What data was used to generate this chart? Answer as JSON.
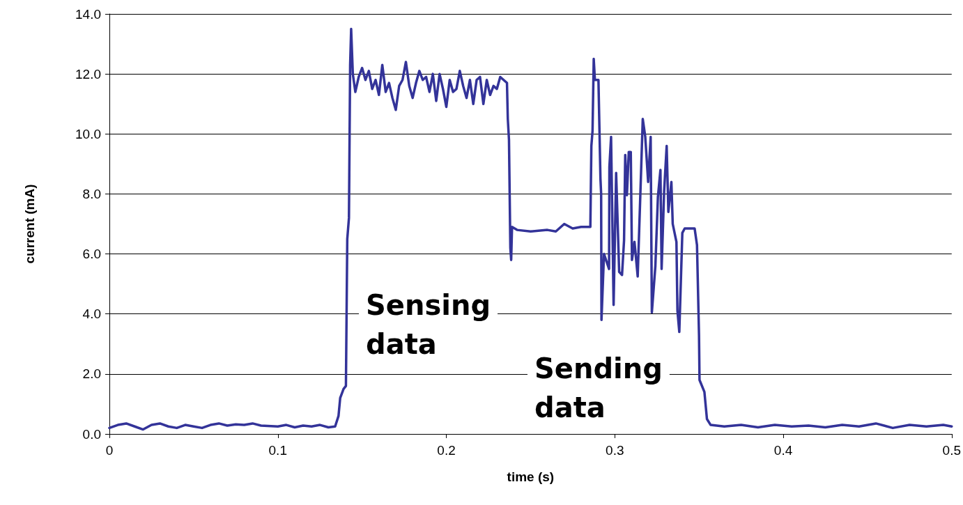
{
  "chart_data": {
    "type": "line",
    "xlabel": "time (s)",
    "ylabel": "current (mA)",
    "annotations": [
      "Sensing\ndata",
      "Sending\ndata"
    ],
    "xlim": [
      0,
      0.5
    ],
    "xticks": [
      0,
      0.1,
      0.2,
      0.3,
      0.4,
      0.5
    ],
    "ylim": [
      0,
      14
    ],
    "yticks": [
      {
        "value": 0,
        "label": "0.0"
      },
      {
        "value": 2,
        "label": "2.0"
      },
      {
        "value": 4,
        "label": "4.0"
      },
      {
        "value": 6,
        "label": "6.0"
      },
      {
        "value": 8,
        "label": "8.0"
      },
      {
        "value": 10,
        "label": "10.0"
      },
      {
        "value": 12,
        "label": "12.0"
      },
      {
        "value": 14,
        "label": "14.0"
      }
    ],
    "grid": "y",
    "marker": "none",
    "line_style": "solid",
    "series": [
      {
        "color": "#333399",
        "x": [
          0,
          0.005,
          0.01,
          0.015,
          0.02,
          0.025,
          0.03,
          0.035,
          0.04,
          0.045,
          0.05,
          0.055,
          0.06,
          0.065,
          0.07,
          0.075,
          0.08,
          0.085,
          0.09,
          0.1,
          0.105,
          0.11,
          0.115,
          0.12,
          0.125,
          0.13,
          0.134,
          0.136,
          0.137,
          0.139,
          0.1404,
          0.1412,
          0.1422,
          0.1429,
          0.1435,
          0.1445,
          0.146,
          0.148,
          0.15,
          0.152,
          0.154,
          0.156,
          0.158,
          0.16,
          0.162,
          0.164,
          0.166,
          0.168,
          0.17,
          0.172,
          0.174,
          0.176,
          0.178,
          0.18,
          0.182,
          0.184,
          0.186,
          0.188,
          0.19,
          0.192,
          0.194,
          0.196,
          0.198,
          0.2,
          0.202,
          0.204,
          0.206,
          0.208,
          0.21,
          0.212,
          0.214,
          0.216,
          0.218,
          0.22,
          0.222,
          0.224,
          0.226,
          0.228,
          0.23,
          0.232,
          0.234,
          0.236,
          0.2365,
          0.2372,
          0.238,
          0.2385,
          0.239,
          0.242,
          0.25,
          0.26,
          0.265,
          0.27,
          0.275,
          0.28,
          0.2855,
          0.2861,
          0.2868,
          0.2875,
          0.2882,
          0.2903,
          0.2915,
          0.2919,
          0.2921,
          0.2936,
          0.2966,
          0.2968,
          0.2978,
          0.2993,
          0.3008,
          0.3026,
          0.3043,
          0.3055,
          0.3062,
          0.3072,
          0.3083,
          0.3095,
          0.3102,
          0.3117,
          0.3136,
          0.3157,
          0.3166,
          0.3181,
          0.3198,
          0.3213,
          0.322,
          0.3241,
          0.3256,
          0.3271,
          0.3278,
          0.3293,
          0.3308,
          0.3318,
          0.3336,
          0.3344,
          0.3366,
          0.3372,
          0.3383,
          0.3401,
          0.3415,
          0.3474,
          0.3488,
          0.35,
          0.3503,
          0.3532,
          0.3547,
          0.3569,
          0.365,
          0.375,
          0.385,
          0.395,
          0.405,
          0.415,
          0.425,
          0.435,
          0.445,
          0.455,
          0.465,
          0.475,
          0.485,
          0.495,
          0.5
        ],
        "values": [
          0.2,
          0.3,
          0.35,
          0.25,
          0.15,
          0.3,
          0.35,
          0.25,
          0.2,
          0.3,
          0.25,
          0.2,
          0.3,
          0.35,
          0.28,
          0.32,
          0.3,
          0.35,
          0.28,
          0.25,
          0.3,
          0.22,
          0.28,
          0.25,
          0.3,
          0.22,
          0.25,
          0.6,
          1.2,
          1.5,
          1.6,
          6.5,
          7.2,
          12.3,
          13.5,
          12.0,
          11.4,
          11.9,
          12.2,
          11.8,
          12.1,
          11.5,
          11.8,
          11.3,
          12.3,
          11.4,
          11.7,
          11.2,
          10.8,
          11.6,
          11.8,
          12.4,
          11.6,
          11.2,
          11.7,
          12.1,
          11.8,
          11.9,
          11.4,
          12.0,
          11.1,
          12.0,
          11.5,
          10.9,
          11.8,
          11.4,
          11.5,
          12.1,
          11.6,
          11.2,
          11.8,
          11.0,
          11.8,
          11.9,
          11.0,
          11.8,
          11.3,
          11.6,
          11.5,
          11.9,
          11.8,
          11.7,
          10.5,
          9.8,
          6.2,
          5.8,
          6.9,
          6.8,
          6.75,
          6.8,
          6.75,
          7.0,
          6.85,
          6.9,
          6.9,
          9.6,
          10.1,
          12.5,
          11.8,
          11.8,
          8.5,
          8.0,
          3.8,
          6.0,
          5.5,
          8.9,
          9.9,
          4.3,
          8.7,
          5.4,
          5.3,
          6.45,
          9.3,
          7.96,
          9.4,
          9.4,
          5.8,
          6.4,
          5.25,
          8.9,
          10.5,
          9.9,
          8.4,
          9.9,
          4.05,
          5.6,
          7.9,
          8.8,
          5.5,
          8.1,
          9.6,
          7.4,
          8.4,
          7.0,
          6.4,
          4.1,
          3.4,
          6.7,
          6.85,
          6.85,
          6.3,
          3.3,
          1.8,
          1.4,
          0.5,
          0.3,
          0.25,
          0.3,
          0.22,
          0.3,
          0.25,
          0.28,
          0.22,
          0.3,
          0.25,
          0.35,
          0.2,
          0.3,
          0.25,
          0.3,
          0.25
        ]
      }
    ]
  }
}
